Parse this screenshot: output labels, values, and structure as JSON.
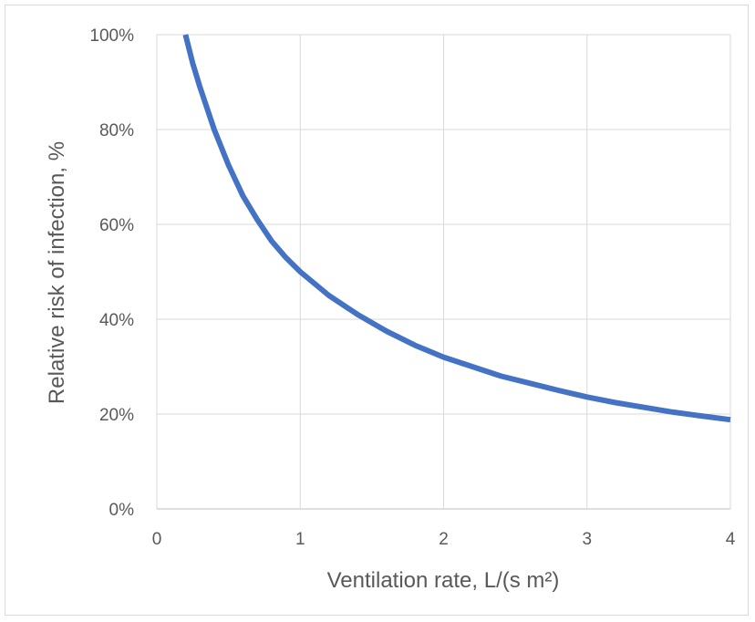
{
  "chart_data": {
    "type": "line",
    "title": "",
    "xlabel": "Ventilation rate, L/(s m²)",
    "ylabel": "Relative risk of infection, %",
    "xlim": [
      0,
      4
    ],
    "ylim": [
      0,
      1
    ],
    "x_ticks": [
      "0",
      "1",
      "2",
      "3",
      "4"
    ],
    "y_ticks": [
      "0%",
      "20%",
      "40%",
      "60%",
      "80%",
      "100%"
    ],
    "grid": true,
    "series": [
      {
        "color": "#4472C4",
        "x": [
          0.2,
          0.25,
          0.3,
          0.4,
          0.5,
          0.6,
          0.7,
          0.8,
          0.9,
          1.0,
          1.2,
          1.4,
          1.6,
          1.8,
          2.0,
          2.2,
          2.4,
          2.6,
          2.8,
          3.0,
          3.2,
          3.4,
          3.6,
          3.8,
          4.0
        ],
        "y": [
          1.0,
          0.94,
          0.89,
          0.8,
          0.725,
          0.66,
          0.61,
          0.565,
          0.53,
          0.5,
          0.45,
          0.41,
          0.375,
          0.345,
          0.32,
          0.3,
          0.28,
          0.265,
          0.25,
          0.236,
          0.224,
          0.214,
          0.204,
          0.196,
          0.188
        ]
      }
    ]
  }
}
